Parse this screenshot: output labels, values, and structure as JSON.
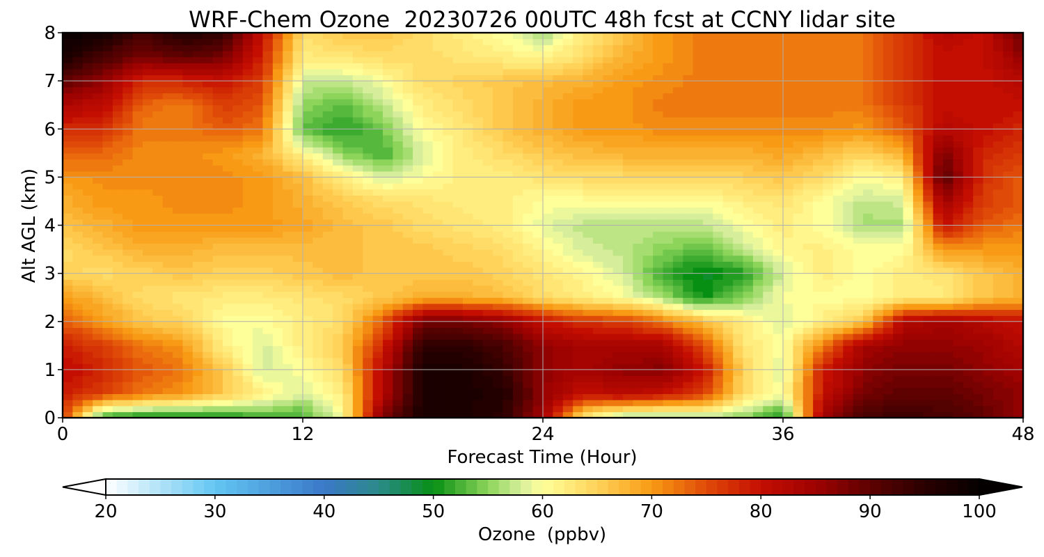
{
  "chart_data": {
    "type": "heatmap",
    "title": "WRF-Chem Ozone  20230726 00UTC 48h fcst at CCNY lidar site",
    "xlabel": "Forecast Time (Hour)",
    "ylabel": "Alt AGL (km)",
    "xlim": [
      0,
      48
    ],
    "ylim": [
      0,
      8
    ],
    "xticks": [
      0,
      12,
      24,
      36,
      48
    ],
    "yticks": [
      0,
      1,
      2,
      3,
      4,
      5,
      6,
      7,
      8
    ],
    "grid": true,
    "colorbar": {
      "label": "Ozone  (ppbv)",
      "range": [
        20,
        100
      ],
      "ticks": [
        20,
        30,
        40,
        50,
        60,
        70,
        80,
        90,
        100
      ],
      "extend": "both",
      "colors": [
        {
          "v": 20,
          "c": "#ffffff"
        },
        {
          "v": 30,
          "c": "#63c6f2"
        },
        {
          "v": 40,
          "c": "#3a78c8"
        },
        {
          "v": 45,
          "c": "#2b8a8a"
        },
        {
          "v": 50,
          "c": "#078f14"
        },
        {
          "v": 55,
          "c": "#8cd45a"
        },
        {
          "v": 58,
          "c": "#d6ee9b"
        },
        {
          "v": 60,
          "c": "#ffff9a"
        },
        {
          "v": 65,
          "c": "#ffd35a"
        },
        {
          "v": 70,
          "c": "#f89a14"
        },
        {
          "v": 75,
          "c": "#e04a08"
        },
        {
          "v": 80,
          "c": "#c40e02"
        },
        {
          "v": 85,
          "c": "#9e0201"
        },
        {
          "v": 90,
          "c": "#5e0101"
        },
        {
          "v": 95,
          "c": "#2a0000"
        },
        {
          "v": 100,
          "c": "#050000"
        }
      ]
    },
    "field": {
      "x": [
        0,
        2,
        4,
        6,
        8,
        10,
        12,
        14,
        16,
        18,
        20,
        22,
        24,
        26,
        28,
        30,
        32,
        34,
        36,
        38,
        40,
        42,
        44,
        46,
        48
      ],
      "y": [
        0,
        0.5,
        1,
        1.5,
        2,
        2.5,
        3,
        3.5,
        4,
        4.5,
        5,
        5.5,
        6,
        6.5,
        7,
        7.5,
        8
      ],
      "z": [
        [
          76,
          51,
          49,
          49,
          50,
          52,
          52,
          60,
          88,
          97,
          97,
          95,
          84,
          62,
          55,
          55,
          56,
          55,
          50,
          85,
          92,
          94,
          92,
          90,
          86
        ],
        [
          79,
          76,
          72,
          70,
          66,
          62,
          58,
          62,
          82,
          97,
          97,
          96,
          86,
          80,
          82,
          80,
          76,
          64,
          60,
          80,
          88,
          90,
          90,
          88,
          86
        ],
        [
          81,
          78,
          74,
          72,
          66,
          58,
          60,
          64,
          82,
          97,
          97,
          94,
          86,
          84,
          86,
          87,
          80,
          65,
          58,
          79,
          86,
          88,
          88,
          86,
          84
        ],
        [
          79,
          76,
          72,
          70,
          62,
          58,
          62,
          66,
          78,
          95,
          95,
          92,
          86,
          84,
          84,
          84,
          75,
          63,
          60,
          72,
          84,
          86,
          86,
          85,
          82
        ],
        [
          74,
          70,
          66,
          65,
          60,
          60,
          62,
          64,
          74,
          88,
          88,
          86,
          80,
          77,
          76,
          72,
          67,
          62,
          58,
          62,
          66,
          82,
          84,
          82,
          80
        ],
        [
          70,
          67,
          64,
          63,
          62,
          62,
          63,
          64,
          66,
          68,
          68,
          67,
          64,
          62,
          60,
          56,
          50,
          55,
          60,
          60,
          60,
          62,
          62,
          66,
          68
        ],
        [
          65,
          64,
          65,
          66,
          65,
          65,
          66,
          67,
          66,
          66,
          66,
          65,
          63,
          61,
          58,
          52,
          49,
          51,
          58,
          62,
          60,
          62,
          63,
          66,
          68
        ],
        [
          64,
          66,
          68,
          68,
          67,
          67,
          67,
          67,
          66,
          66,
          65,
          64,
          61,
          58,
          57,
          55,
          53,
          57,
          61,
          62,
          60,
          60,
          70,
          70,
          70
        ],
        [
          66,
          68,
          70,
          70,
          70,
          70,
          69,
          67,
          66,
          64,
          63,
          62,
          59,
          57,
          57,
          57,
          57,
          60,
          62,
          60,
          56,
          56,
          80,
          74,
          72
        ],
        [
          68,
          70,
          70,
          71,
          71,
          70,
          68,
          66,
          64,
          63,
          62,
          62,
          60,
          60,
          60,
          60,
          60,
          62,
          63,
          60,
          57,
          58,
          85,
          76,
          74
        ],
        [
          70,
          71,
          71,
          71,
          71,
          70,
          67,
          62,
          58,
          60,
          62,
          62,
          63,
          64,
          64,
          64,
          64,
          65,
          66,
          64,
          60,
          62,
          91,
          77,
          74
        ],
        [
          74,
          73,
          71,
          71,
          70,
          68,
          61,
          55,
          52,
          58,
          62,
          64,
          66,
          67,
          68,
          68,
          68,
          68,
          69,
          67,
          65,
          68,
          88,
          78,
          76
        ],
        [
          78,
          77,
          72,
          72,
          74,
          72,
          53,
          51,
          54,
          60,
          63,
          66,
          68,
          70,
          70,
          71,
          71,
          71,
          71,
          71,
          70,
          74,
          82,
          80,
          78
        ],
        [
          83,
          81,
          73,
          72,
          76,
          74,
          55,
          53,
          57,
          62,
          64,
          66,
          68,
          70,
          70,
          72,
          72,
          72,
          72,
          72,
          72,
          76,
          80,
          80,
          80
        ],
        [
          90,
          86,
          78,
          78,
          80,
          76,
          58,
          57,
          60,
          64,
          65,
          66,
          67,
          68,
          70,
          71,
          72,
          72,
          72,
          72,
          72,
          76,
          80,
          80,
          82
        ],
        [
          97,
          92,
          88,
          90,
          88,
          78,
          62,
          63,
          64,
          64,
          63,
          62,
          61,
          64,
          68,
          70,
          72,
          72,
          72,
          72,
          72,
          76,
          80,
          80,
          86
        ],
        [
          100,
          98,
          92,
          96,
          94,
          80,
          64,
          66,
          66,
          64,
          62,
          60,
          56,
          62,
          66,
          70,
          72,
          72,
          72,
          72,
          72,
          76,
          82,
          80,
          90
        ]
      ]
    }
  }
}
